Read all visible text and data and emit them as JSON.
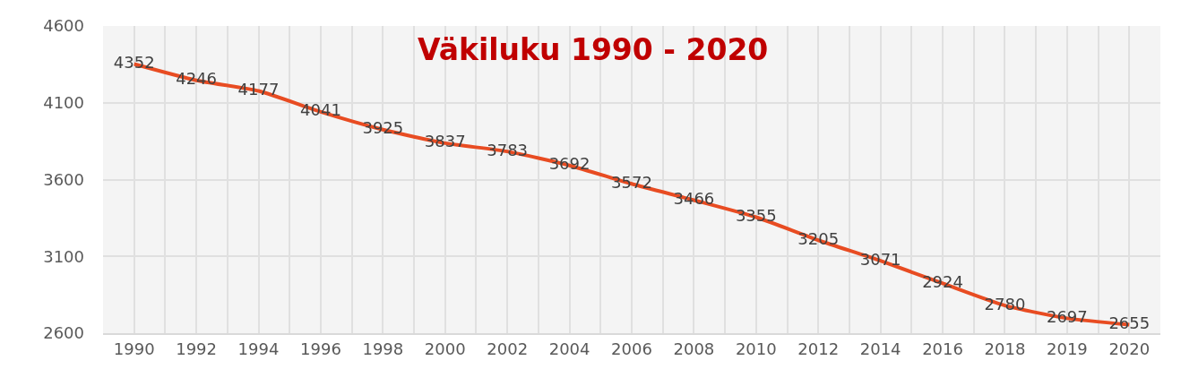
{
  "chart_data": {
    "type": "line",
    "title": "Väkiluku 1990 - 2020",
    "categories": [
      "1990",
      "1992",
      "1994",
      "1996",
      "1998",
      "2000",
      "2002",
      "2004",
      "2006",
      "2008",
      "2010",
      "2012",
      "2014",
      "2016",
      "2018",
      "2019",
      "2020"
    ],
    "series": [
      {
        "color": "#e84c22",
        "values": [
          4352,
          4246,
          4177,
          4041,
          3925,
          3837,
          3783,
          3692,
          3572,
          3466,
          3355,
          3205,
          3071,
          2924,
          2780,
          2697,
          2655
        ]
      }
    ],
    "ylim": [
      2600,
      4600
    ],
    "yticks": [
      2600,
      3100,
      3600,
      4100,
      4600
    ],
    "grid": true,
    "data_labels": true
  }
}
